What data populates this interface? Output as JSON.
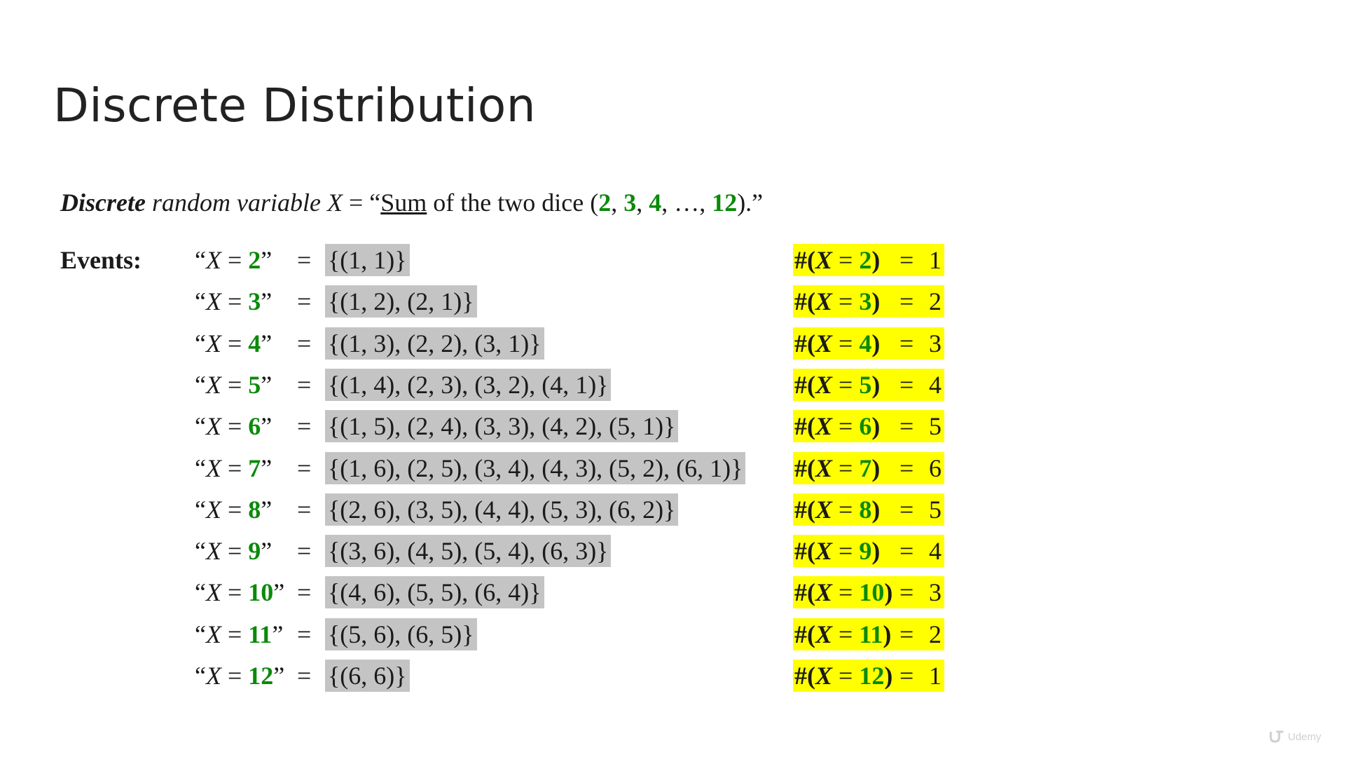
{
  "slide": {
    "title": "Discrete Distribution"
  },
  "intro": {
    "word_discrete": "Discrete",
    "text_random_variable": " random variable ",
    "var_x": "X",
    "text_equals_open": " = “",
    "word_sum": "Sum",
    "text_of_dice": " of the two dice (",
    "v2": "2",
    "sep1": ", ",
    "v3": "3",
    "sep2": ", ",
    "v4": "4",
    "sep3": ", …, ",
    "v12": "12",
    "text_close": ").”"
  },
  "events_label": "Events:",
  "events": [
    {
      "value": "2",
      "set": "{(1, 1)}",
      "count": "1"
    },
    {
      "value": "3",
      "set": "{(1, 2), (2, 1)}",
      "count": "2"
    },
    {
      "value": "4",
      "set": "{(1, 3), (2, 2), (3, 1)}",
      "count": "3"
    },
    {
      "value": "5",
      "set": "{(1, 4), (2, 3), (3, 2), (4, 1)}",
      "count": "4"
    },
    {
      "value": "6",
      "set": "{(1, 5), (2, 4), (3, 3), (4, 2), (5, 1)}",
      "count": "5"
    },
    {
      "value": "7",
      "set": "{(1, 6), (2, 5), (3, 4), (4, 3), (5, 2), (6, 1)}",
      "count": "6"
    },
    {
      "value": "8",
      "set": "{(2, 6), (3, 5), (4, 4), (5, 3), (6, 2)}",
      "count": "5"
    },
    {
      "value": "9",
      "set": "{(3, 6), (4, 5), (5, 4), (6, 3)}",
      "count": "4"
    },
    {
      "value": "10",
      "set": "{(4, 6), (5, 5), (6, 4)}",
      "count": "3"
    },
    {
      "value": "11",
      "set": "{(5, 6), (6, 5)}",
      "count": "2"
    },
    {
      "value": "12",
      "set": "{(6, 6)}",
      "count": "1"
    }
  ],
  "logo": {
    "brand": "Udemy"
  },
  "colors": {
    "highlight_yellow": "#ffff00",
    "set_gray": "#c4c4c4",
    "value_green": "#0a8a0a"
  }
}
